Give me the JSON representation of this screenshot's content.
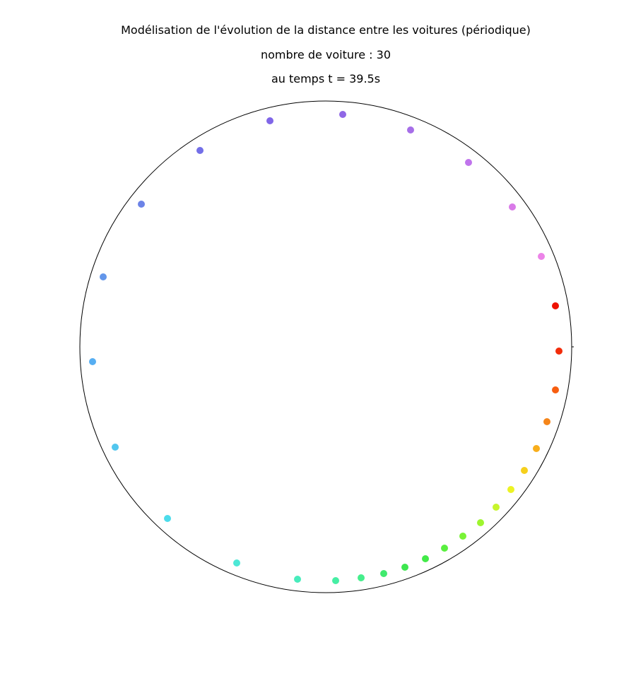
{
  "chart_data": {
    "type": "scatter",
    "layout": "circular-track",
    "title": "Modélisation de l'évolution de la distance entre les voitures (périodique)",
    "subtitle_count": "nombre de voiture : 30",
    "subtitle_time": "au temps t = 39.5s",
    "track_color": "#000000",
    "point_colors": [
      "#ee1100",
      "#f22c0a",
      "#f75e10",
      "#f5851a",
      "#f8ae1c",
      "#f6d01c",
      "#ecf324",
      "#c7f52c",
      "#9ef52e",
      "#79f336",
      "#59ef3f",
      "#42ea48",
      "#3de64f",
      "#40ea6e",
      "#45ee8c",
      "#46eea4",
      "#48ecbc",
      "#4de8d6",
      "#4cdceb",
      "#52c6ee",
      "#56aef2",
      "#6396ea",
      "#6c83e7",
      "#736fe8",
      "#8066e8",
      "#9067e6",
      "#a66ee8",
      "#c074ec",
      "#d97ae8",
      "#ec84e8"
    ],
    "point_names": [
      "car-point-1",
      "car-point-2",
      "car-point-3",
      "car-point-4",
      "car-point-5",
      "car-point-6",
      "car-point-7",
      "car-point-8",
      "car-point-9",
      "car-point-10",
      "car-point-11",
      "car-point-12",
      "car-point-13",
      "car-point-14",
      "car-point-15",
      "car-point-16",
      "car-point-17",
      "car-point-18",
      "car-point-19",
      "car-point-20",
      "car-point-21",
      "car-point-22",
      "car-point-23",
      "car-point-24",
      "car-point-25",
      "car-point-26",
      "car-point-27",
      "car-point-28",
      "car-point-29",
      "car-point-30"
    ]
  }
}
